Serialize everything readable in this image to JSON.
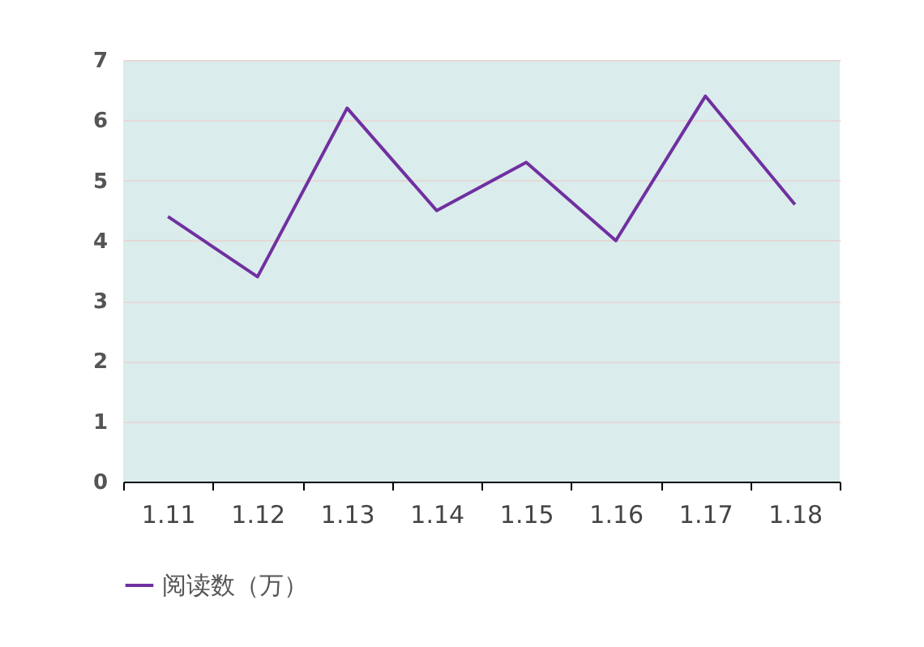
{
  "chart_data": {
    "type": "line",
    "categories": [
      "1.11",
      "1.12",
      "1.13",
      "1.14",
      "1.15",
      "1.16",
      "1.17",
      "1.18"
    ],
    "series": [
      {
        "name": "阅读数（万）",
        "color": "#7030a0",
        "values": [
          4.4,
          3.4,
          6.2,
          4.5,
          5.3,
          4.0,
          6.4,
          4.6
        ]
      }
    ],
    "ylim": [
      0,
      7
    ],
    "yticks": [
      0,
      1,
      2,
      3,
      4,
      5,
      6,
      7
    ],
    "grid": "y",
    "legend": "bottom",
    "marker": "none",
    "line_style": "solid"
  }
}
